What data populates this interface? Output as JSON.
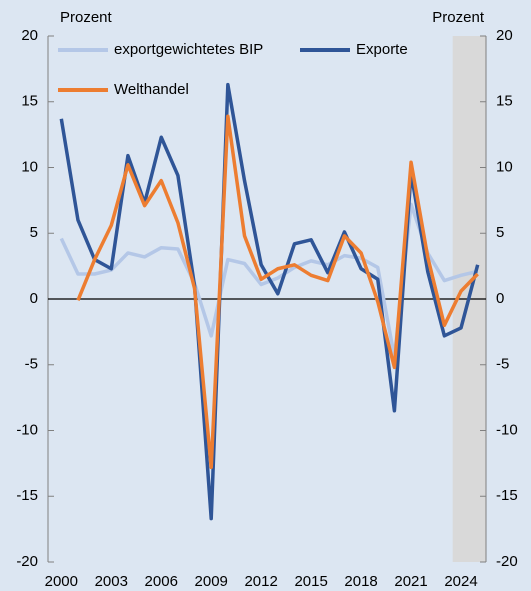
{
  "chart_data": {
    "type": "line",
    "y_label_left": "Prozent",
    "y_label_right": "Prozent",
    "x": [
      2000,
      2001,
      2002,
      2003,
      2004,
      2005,
      2006,
      2007,
      2008,
      2009,
      2010,
      2011,
      2012,
      2013,
      2014,
      2015,
      2016,
      2017,
      2018,
      2019,
      2020,
      2021,
      2022,
      2023,
      2024,
      2025
    ],
    "series": [
      {
        "name": "exportgewichtetes BIP",
        "color": "#b4c7e7",
        "values": [
          4.6,
          1.9,
          1.9,
          2.2,
          3.5,
          3.2,
          3.9,
          3.8,
          1.2,
          -2.8,
          3.0,
          2.7,
          1.1,
          1.6,
          2.4,
          2.9,
          2.6,
          3.3,
          3.1,
          2.4,
          -4.4,
          7.2,
          3.5,
          1.4,
          1.8,
          2.1
        ]
      },
      {
        "name": "Exporte",
        "color": "#2f5597",
        "values": [
          13.7,
          6.0,
          3.0,
          2.3,
          10.9,
          7.3,
          12.3,
          9.4,
          1.0,
          -16.7,
          16.3,
          9.0,
          2.6,
          0.4,
          4.2,
          4.5,
          2.0,
          5.1,
          2.3,
          1.5,
          -8.5,
          9.6,
          2.1,
          -2.8,
          -2.2,
          2.6
        ]
      },
      {
        "name": "Welthandel",
        "color": "#ed7d31",
        "values": [
          null,
          -0.1,
          3.0,
          5.6,
          10.2,
          7.1,
          9.0,
          5.8,
          0.8,
          -12.8,
          13.9,
          4.8,
          1.5,
          2.3,
          2.6,
          1.8,
          1.4,
          4.8,
          3.5,
          -0.2,
          -5.2,
          10.4,
          3.2,
          -2.0,
          0.6,
          1.9
        ]
      }
    ],
    "xlim": [
      1999.2,
      2025.5
    ],
    "xticks": [
      2000,
      2003,
      2006,
      2009,
      2012,
      2015,
      2018,
      2021,
      2024
    ],
    "ylim": [
      -20,
      20
    ],
    "yticks": [
      -20,
      -15,
      -10,
      -5,
      0,
      5,
      10,
      15,
      20
    ],
    "shade": [
      2023.5,
      2025.5
    ],
    "shade_color": "#d9d9d9",
    "zero_line": true
  }
}
